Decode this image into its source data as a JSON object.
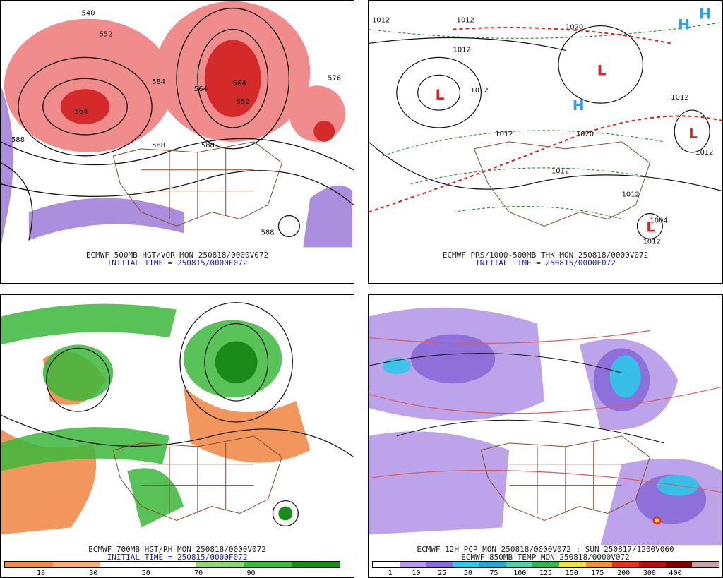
{
  "panels": [
    {
      "caption_line1": "ECMWF 500MB HGT/VOR MON 250818/0000V072",
      "caption_line2": "INITIAL TIME = 250815/0000F072",
      "contour_labels": [
        "540",
        "552",
        "564",
        "584",
        "588",
        "576",
        "564",
        "552",
        "588",
        "588",
        "564",
        "588"
      ],
      "vorticity_color": "#e83a3a"
    },
    {
      "caption_line1": "ECMWF PRS/1000-500MB THK MON 250818/0000V072",
      "caption_line2": "INITIAL TIME = 250815/0000F072",
      "pressure_labels": [
        "1012",
        "1012",
        "1012",
        "1012",
        "1020",
        "1020",
        "1012",
        "1012",
        "1012",
        "1012",
        "1004",
        "1012",
        "1012"
      ],
      "low_marker": "L",
      "high_marker": "H"
    },
    {
      "caption_line1": "ECMWF 700MB HGT/RH MON 250818/0000V072",
      "caption_line2": "INITIAL TIME = 250815/0000F072",
      "colorbar": {
        "colors": [
          "#f08c4c",
          "#f5ad7a",
          "#ffffff",
          "#ffffff",
          "#8fd66e",
          "#3cb83c",
          "#1a8a1a"
        ],
        "ticks": [
          "10",
          "30",
          "50",
          "70",
          "90"
        ]
      }
    },
    {
      "caption_line1": "ECMWF 12H PCP MON 250818/0000V072 : SUN 250817/1200V060",
      "caption_line2": "ECMWF 850MB TEMP MON 250818/0000V072",
      "colorbar": {
        "colors": [
          "#ffffff",
          "#b69ae8",
          "#8a6ad8",
          "#30c8e8",
          "#20a8d8",
          "#50d0a8",
          "#30b850",
          "#f0e040",
          "#f09030",
          "#e83020",
          "#b81010",
          "#800000",
          "#c8a0a8"
        ],
        "ticks": [
          "1",
          "10",
          "25",
          "50",
          "75",
          "100",
          "125",
          "150",
          "175",
          "200",
          "300",
          "400"
        ]
      }
    }
  ],
  "map_land_border_color": "#8b4a2b",
  "map_contour_color": "#111111"
}
